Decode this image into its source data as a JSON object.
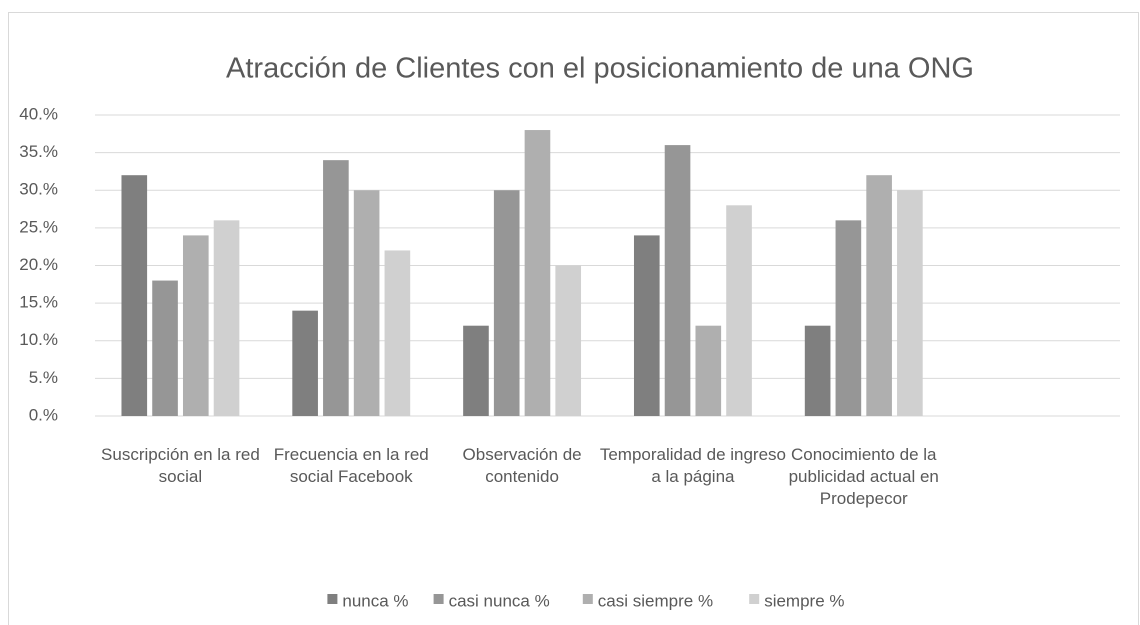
{
  "chart_data": {
    "type": "bar",
    "title": "Atracción de Clientes con el posicionamiento de una ONG",
    "categories": [
      "Suscripción en la red social",
      "Frecuencia en la red social Facebook",
      "Observación de contenido",
      "Temporalidad de ingreso a la página",
      "Conocimiento de la publicidad actual en Prodepecor",
      null
    ],
    "series": [
      {
        "name": "nunca %",
        "color": "#7f7f7f",
        "values": [
          32,
          14,
          12,
          24,
          12,
          null
        ]
      },
      {
        "name": "casi nunca %",
        "color": "#969696",
        "values": [
          18,
          34,
          30,
          36,
          26,
          null
        ]
      },
      {
        "name": "casi siempre %",
        "color": "#afafaf",
        "values": [
          24,
          30,
          38,
          12,
          32,
          null
        ]
      },
      {
        "name": "siempre %",
        "color": "#d0d0d0",
        "values": [
          26,
          22,
          20,
          28,
          30,
          null
        ]
      }
    ],
    "ylim": [
      0,
      40
    ],
    "yticks": [
      {
        "value": 0,
        "label": "0.%"
      },
      {
        "value": 5,
        "label": "5.%"
      },
      {
        "value": 10,
        "label": "10.%"
      },
      {
        "value": 15,
        "label": "15.%"
      },
      {
        "value": 20,
        "label": "20.%"
      },
      {
        "value": 25,
        "label": "25.%"
      },
      {
        "value": 30,
        "label": "30.%"
      },
      {
        "value": 35,
        "label": "35.%"
      },
      {
        "value": 40,
        "label": "40.%"
      }
    ],
    "grid": true,
    "legend": "bottom"
  }
}
